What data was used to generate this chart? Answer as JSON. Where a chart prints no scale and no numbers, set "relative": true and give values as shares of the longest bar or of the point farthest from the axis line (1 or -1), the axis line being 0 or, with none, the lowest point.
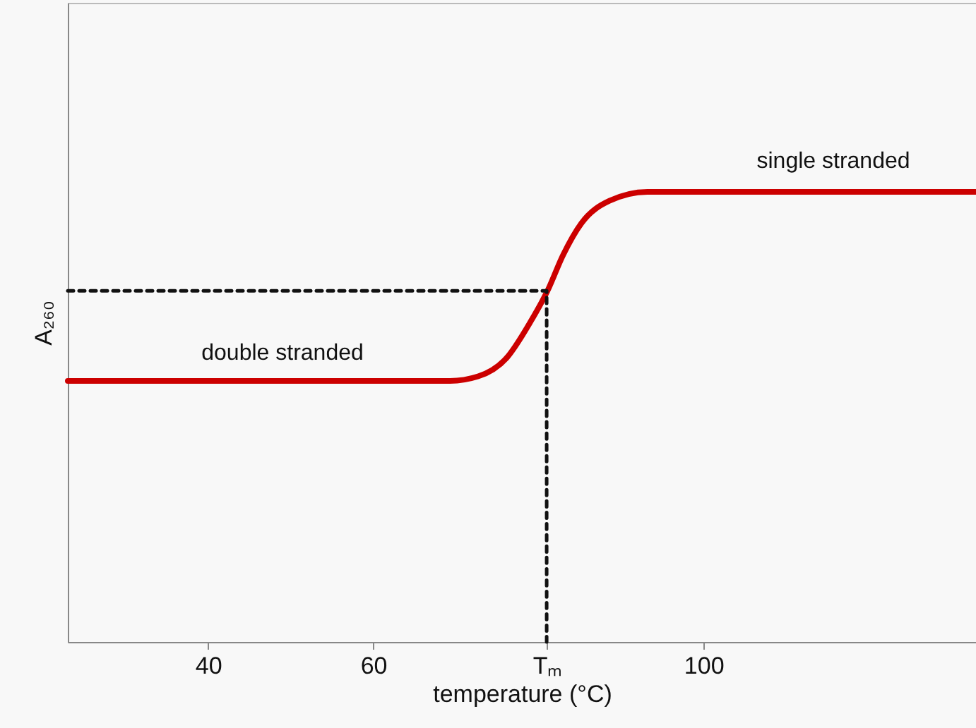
{
  "chart_data": {
    "type": "line",
    "xlabel": "temperature (°C)",
    "ylabel": "A₂₆₀",
    "relative": true,
    "xlim": [
      23,
      133
    ],
    "xticks": [
      40,
      60,
      {
        "value": 81,
        "label": "Tₘ"
      },
      100
    ],
    "series": [
      {
        "color": "#cc0000",
        "x": [
          23,
          69.3,
          72.7,
          76.1,
          79,
          81.1,
          83,
          85.2,
          88.6,
          93.2,
          133
        ],
        "values": [
          0.58,
          0.58,
          0.59,
          0.63,
          0.71,
          0.78,
          0.86,
          0.93,
          0.98,
          1,
          1
        ]
      },
      {
        "color": "#111111",
        "line_style": "dashed",
        "x": [
          23,
          81,
          81
        ],
        "values": [
          0.78,
          0.78,
          0
        ]
      }
    ],
    "annotations": [
      "double stranded",
      "single stranded"
    ]
  }
}
